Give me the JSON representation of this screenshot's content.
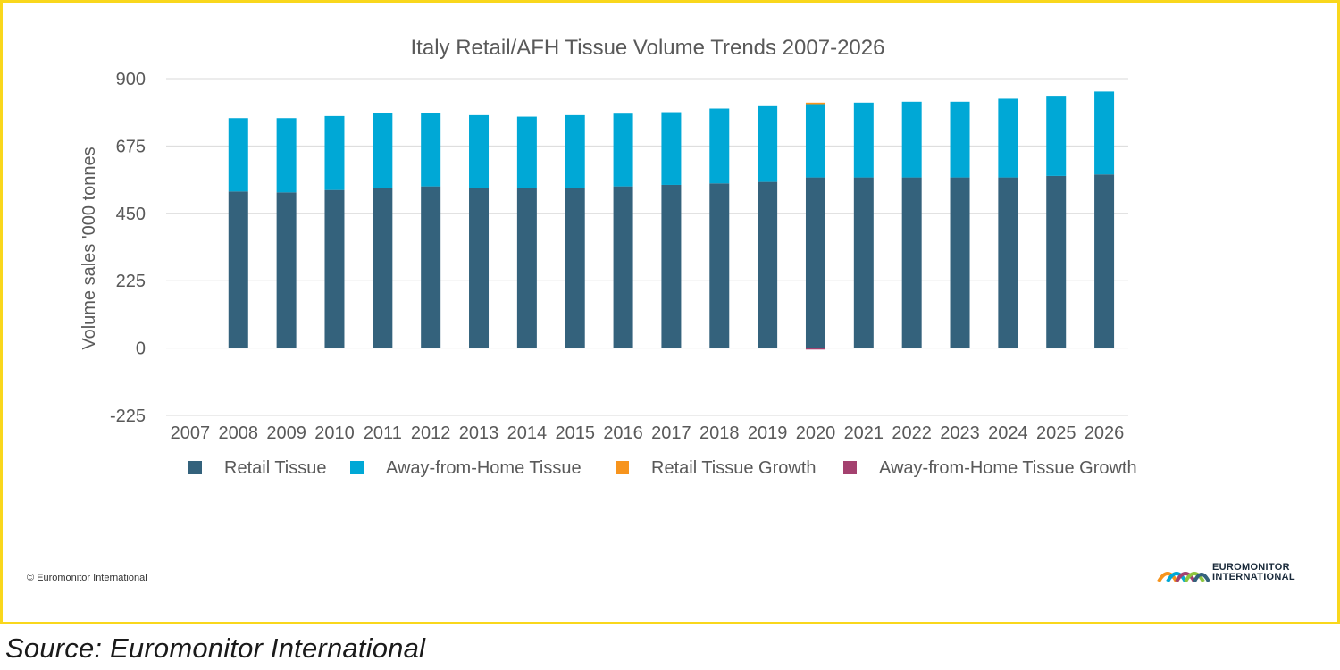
{
  "chart_data": {
    "type": "bar",
    "stacked": true,
    "title": "Italy Retail/AFH Tissue Volume Trends 2007-2026",
    "ylabel": "Volume sales '000 tonnes",
    "xlabel": "",
    "ylim": [
      -225,
      900
    ],
    "yticks": [
      900,
      675,
      450,
      225,
      0,
      -225
    ],
    "grid": true,
    "legend_position": "bottom",
    "categories": [
      "2007",
      "2008",
      "2009",
      "2010",
      "2011",
      "2012",
      "2013",
      "2014",
      "2015",
      "2016",
      "2017",
      "2018",
      "2019",
      "2020",
      "2021",
      "2022",
      "2023",
      "2024",
      "2025",
      "2026"
    ],
    "series": [
      {
        "name": "Retail Tissue",
        "color": "#34627C",
        "values": [
          0,
          523,
          520,
          528,
          535,
          540,
          535,
          535,
          535,
          540,
          545,
          550,
          555,
          570,
          570,
          570,
          570,
          570,
          575,
          580
        ]
      },
      {
        "name": "Away-from-Home Tissue",
        "color": "#00A8D6",
        "values": [
          0,
          245,
          248,
          247,
          250,
          245,
          243,
          238,
          243,
          243,
          243,
          250,
          253,
          245,
          250,
          253,
          253,
          263,
          265,
          277
        ]
      },
      {
        "name": "Retail Tissue Growth",
        "color": "#F7941D",
        "values": [
          0,
          0,
          0,
          0,
          0,
          0,
          0,
          0,
          0,
          0,
          0,
          0,
          0,
          5,
          0,
          0,
          0,
          0,
          0,
          0
        ]
      },
      {
        "name": "Away-from-Home Tissue Growth",
        "color": "#A4416F",
        "values": [
          0,
          0,
          0,
          0,
          0,
          0,
          0,
          0,
          0,
          0,
          0,
          0,
          0,
          -5,
          0,
          0,
          0,
          0,
          0,
          0
        ]
      }
    ]
  },
  "copyright": "© Euromonitor International",
  "logo": {
    "line1": "EUROMONITOR",
    "line2": "INTERNATIONAL"
  },
  "source": "Source: Euromonitor International",
  "colors": {
    "frame": "#F9D71C",
    "grid": "#D9D9D9",
    "text": "#595959"
  }
}
